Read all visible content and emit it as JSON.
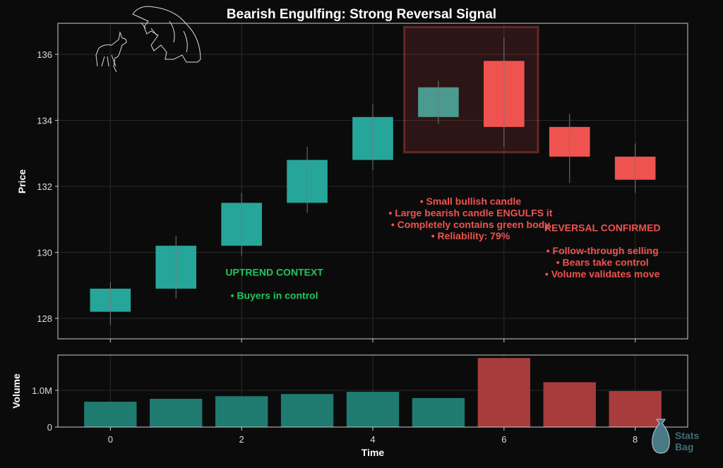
{
  "chart_data": [
    {
      "type": "candlestick",
      "title": "Bearish Engulfing: Strong Reversal Signal",
      "ylabel": "Price",
      "xlim": [
        -0.8,
        8.8
      ],
      "ylim": [
        127.38,
        136.94
      ],
      "yticks": [
        128,
        130,
        132,
        134,
        136
      ],
      "grid": true,
      "x": [
        0,
        1,
        2,
        3,
        4,
        5,
        6,
        7,
        8
      ],
      "open": [
        128.2,
        128.9,
        130.2,
        131.5,
        132.8,
        134.1,
        135.8,
        133.8,
        132.9
      ],
      "high": [
        129.1,
        130.5,
        131.8,
        133.2,
        134.5,
        135.2,
        136.5,
        134.2,
        133.3
      ],
      "low": [
        127.8,
        128.6,
        129.9,
        131.2,
        132.5,
        133.9,
        133.2,
        132.1,
        131.8
      ],
      "close": [
        128.9,
        130.2,
        131.5,
        132.8,
        134.1,
        135.0,
        133.8,
        132.9,
        132.2
      ],
      "highlight": {
        "x": [
          4.48,
          6.52
        ],
        "y": [
          133.03,
          136.83
        ]
      },
      "annotations": [
        {
          "id": "uptrend_title",
          "text": "UPTREND CONTEXT",
          "x": 2.5,
          "y": 129.4,
          "color": "#22c55e"
        },
        {
          "id": "uptrend_body",
          "text": "• Buyers in control",
          "x": 2.5,
          "y": 128.7,
          "color": "#22c55e"
        },
        {
          "id": "pattern_1",
          "text": "• Small bullish candle",
          "x": 5.49,
          "y": 131.55,
          "color": "#ef5350"
        },
        {
          "id": "pattern_2",
          "text": "• Large bearish candle ENGULFS it",
          "x": 5.49,
          "y": 131.2,
          "color": "#ef5350"
        },
        {
          "id": "pattern_3",
          "text": "• Completely contains green body",
          "x": 5.49,
          "y": 130.85,
          "color": "#ef5350"
        },
        {
          "id": "pattern_4",
          "text": "• Reliability: 79%",
          "x": 5.49,
          "y": 130.5,
          "color": "#ef5350"
        },
        {
          "id": "reversal_title",
          "text": "REVERSAL CONFIRMED",
          "x": 7.5,
          "y": 130.75,
          "color": "#ef5350"
        },
        {
          "id": "reversal_1",
          "text": "• Follow-through selling",
          "x": 7.5,
          "y": 130.05,
          "color": "#ef5350"
        },
        {
          "id": "reversal_2",
          "text": "• Bears take control",
          "x": 7.5,
          "y": 129.7,
          "color": "#ef5350"
        },
        {
          "id": "reversal_3",
          "text": "• Volume validates move",
          "x": 7.5,
          "y": 129.35,
          "color": "#ef5350"
        }
      ],
      "colors": {
        "bull": "#26a69a",
        "bear": "#ef5350",
        "engulfed_bull": "#4a9a8f",
        "highlight": "#ef5350"
      }
    },
    {
      "type": "bar",
      "xlabel": "Time",
      "ylabel": "Volume",
      "xlim": [
        -0.8,
        8.8
      ],
      "ylim": [
        0,
        1.96
      ],
      "yticks": [
        0,
        1.0
      ],
      "ytick_labels": [
        "0",
        "1.0M"
      ],
      "xticks": [
        0,
        2,
        4,
        6,
        8
      ],
      "xtick_labels": [
        "0",
        "2",
        "4",
        "6",
        "8"
      ],
      "x": [
        0,
        1,
        2,
        3,
        4,
        5,
        6,
        7,
        8
      ],
      "values_millions": [
        0.69,
        0.77,
        0.84,
        0.9,
        0.96,
        0.79,
        1.88,
        1.22,
        0.98
      ],
      "bar_colors": [
        "#1f7a70",
        "#1f7a70",
        "#1f7a70",
        "#1f7a70",
        "#1f7a70",
        "#1f7a70",
        "#a83c3c",
        "#a83c3c",
        "#a83c3c"
      ]
    }
  ],
  "watermark": {
    "text": "Stats Bag"
  },
  "logo": {
    "description_text": ""
  }
}
